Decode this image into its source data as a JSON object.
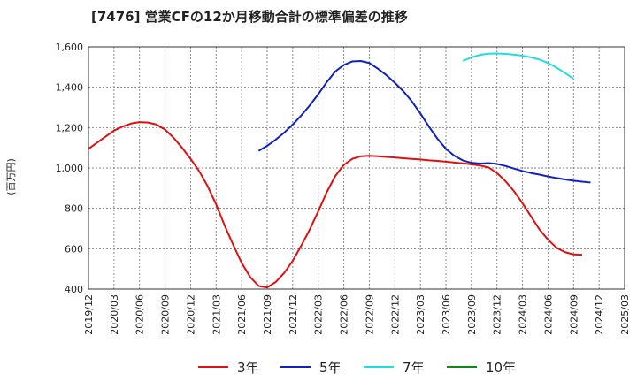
{
  "title": "[7476]  営業CFの12か月移動合計の標準偏差の推移",
  "chart_data": {
    "type": "line",
    "title": "[7476]  営業CFの12か月移動合計の標準偏差の推移",
    "xlabel": "",
    "ylabel": "(百万円)",
    "ylim": [
      400,
      1600
    ],
    "yticks": [
      400,
      600,
      800,
      1000,
      1200,
      1400,
      1600
    ],
    "ytick_labels": [
      "400",
      "600",
      "800",
      "1,000",
      "1,200",
      "1,400",
      "1,600"
    ],
    "xtick_labels": [
      "2019/12",
      "2020/03",
      "2020/06",
      "2020/09",
      "2020/12",
      "2021/03",
      "2021/06",
      "2021/09",
      "2021/12",
      "2022/03",
      "2022/06",
      "2022/09",
      "2022/12",
      "2023/03",
      "2023/06",
      "2023/09",
      "2023/12",
      "2024/03",
      "2024/06",
      "2024/09",
      "2024/12",
      "2025/03"
    ],
    "grid": true,
    "legend_position": "bottom",
    "series": [
      {
        "name": "3年",
        "color": "#dd1111",
        "start": "2019/12",
        "values": [
          1095,
          1125,
          1155,
          1185,
          1205,
          1220,
          1227,
          1225,
          1215,
          1190,
          1150,
          1100,
          1045,
          985,
          910,
          820,
          715,
          620,
          530,
          460,
          415,
          408,
          435,
          480,
          540,
          615,
          695,
          785,
          880,
          960,
          1015,
          1045,
          1058,
          1060,
          1058,
          1055,
          1052,
          1048,
          1045,
          1042,
          1038,
          1035,
          1031,
          1027,
          1023,
          1018,
          1012,
          1003,
          975,
          935,
          885,
          825,
          760,
          695,
          645,
          605,
          583,
          572,
          570
        ]
      },
      {
        "name": "5年",
        "color": "#1122bb",
        "start": "2021/08",
        "values": [
          1085,
          1110,
          1140,
          1175,
          1215,
          1260,
          1310,
          1365,
          1425,
          1478,
          1510,
          1528,
          1530,
          1520,
          1492,
          1460,
          1422,
          1380,
          1330,
          1270,
          1205,
          1145,
          1095,
          1060,
          1037,
          1026,
          1022,
          1024,
          1020,
          1010,
          997,
          985,
          975,
          967,
          958,
          950,
          943,
          937,
          932,
          928
        ]
      },
      {
        "name": "7年",
        "color": "#22dddd",
        "start": "2023/08",
        "values": [
          1530,
          1548,
          1560,
          1566,
          1567,
          1565,
          1561,
          1556,
          1548,
          1537,
          1520,
          1497,
          1470,
          1442
        ]
      },
      {
        "name": "10年",
        "color": "#118811",
        "start": "2024/09",
        "values": []
      }
    ]
  }
}
